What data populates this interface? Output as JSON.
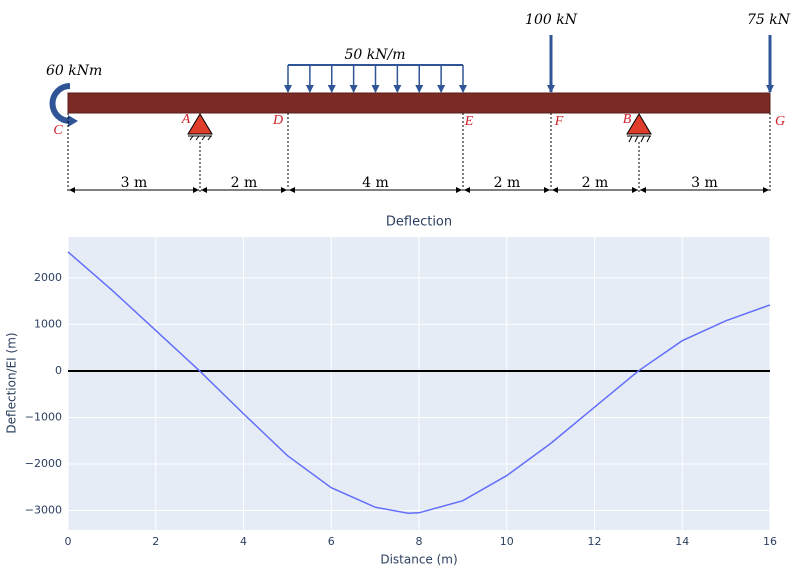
{
  "diagram": {
    "moment": "60 kNm",
    "distributed_load": "50 kN/m",
    "loads": [
      "100 kN",
      "75 kN"
    ],
    "points": [
      "C",
      "A",
      "D",
      "E",
      "F",
      "B",
      "G"
    ],
    "dimensions": [
      "3 m",
      "2 m",
      "4 m",
      "2 m",
      "2 m",
      "3 m"
    ]
  },
  "chart_data": {
    "type": "line",
    "title": "Deflection",
    "x_label": "Distance (m)",
    "y_label": "Deflection/EI (m)",
    "x": [
      0,
      1,
      2,
      3,
      4,
      5,
      6,
      7,
      7.75,
      8,
      9,
      10,
      11,
      12,
      13,
      14,
      15,
      16
    ],
    "series": [
      {
        "name": "Deflection",
        "color": "#636efa",
        "values": [
          2560,
          1740,
          870,
          0,
          -920,
          -1820,
          -2510,
          -2930,
          -3060,
          -3050,
          -2790,
          -2250,
          -1560,
          -780,
          0,
          650,
          1080,
          1420
        ]
      }
    ],
    "xlim": [
      0,
      16
    ],
    "xticks": [
      0,
      2,
      4,
      6,
      8,
      10,
      12,
      14,
      16
    ],
    "ylim": [
      -3420,
      2880
    ],
    "yticks": [
      {
        "value": -3000,
        "label": "−3000"
      },
      {
        "value": -2000,
        "label": "−2000"
      },
      {
        "value": -1000,
        "label": "−1000"
      },
      0,
      1000,
      2000
    ],
    "grid": true
  }
}
